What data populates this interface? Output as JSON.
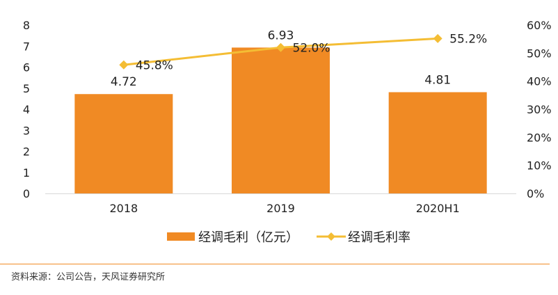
{
  "chart_data": {
    "type": "bar",
    "categories": [
      "2018",
      "2019",
      "2020H1"
    ],
    "series": [
      {
        "name": "经调毛利（亿元）",
        "type": "bar",
        "axis": "left",
        "values": [
          4.72,
          6.93,
          4.81
        ],
        "labels": [
          "4.72",
          "6.93",
          "4.81"
        ]
      },
      {
        "name": "经调毛利率",
        "type": "line",
        "axis": "right",
        "values": [
          45.8,
          52.0,
          55.2
        ],
        "labels": [
          "45.8%",
          "52.0%",
          "55.2%"
        ]
      }
    ],
    "y_left": {
      "ylim": [
        0,
        8
      ],
      "ticks": [
        "0",
        "1",
        "2",
        "3",
        "4",
        "5",
        "6",
        "7",
        "8"
      ]
    },
    "y_right": {
      "ylim": [
        0,
        60
      ],
      "ticks": [
        "0%",
        "10%",
        "20%",
        "30%",
        "40%",
        "50%",
        "60%"
      ]
    },
    "legend_position": "bottom",
    "grid": false
  },
  "colors": {
    "bar": "#f08a24",
    "line": "#f4bd34",
    "text": "#222222",
    "axis": "#d9d9d9",
    "rule": "#f08a24"
  },
  "legend": {
    "bar_label": "经调毛利（亿元）",
    "line_label": "经调毛利率"
  },
  "source": "资料来源：公司公告，天风证券研究所"
}
